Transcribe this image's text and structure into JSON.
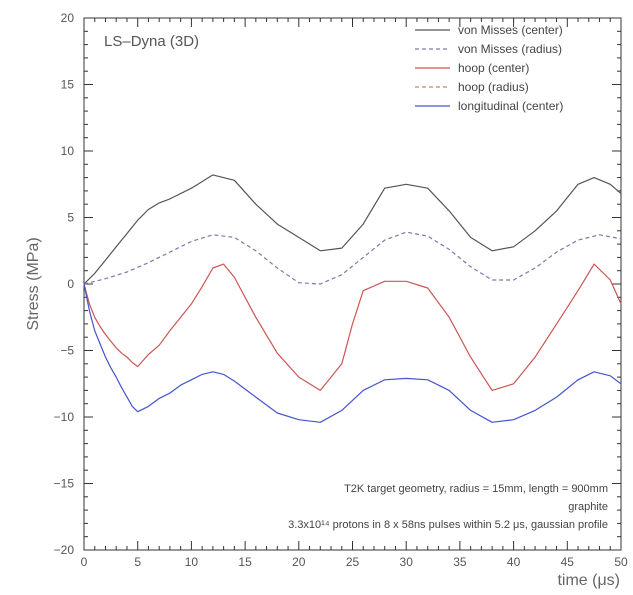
{
  "chart_data": {
    "type": "line",
    "title": "LS–Dyna (3D)",
    "xlabel": "time (μs)",
    "ylabel": "Stress (MPa)",
    "xlim": [
      0,
      50
    ],
    "ylim": [
      -20,
      20
    ],
    "xticks": [
      "0",
      "5",
      "10",
      "15",
      "20",
      "25",
      "30",
      "35",
      "40",
      "45",
      "50"
    ],
    "yticks": [
      "20",
      "15",
      "10",
      "5",
      "0",
      "−5",
      "−10",
      "−15",
      "−20"
    ],
    "grid": false,
    "legend_position": "top-right",
    "annotations": [
      "T2K target geometry, radius = 15mm, length = 900mm",
      "graphite",
      "3.3x10¹⁴ protons in 8 x 58ns pulses within 5.2 μs, gaussian profile"
    ],
    "series": [
      {
        "name": "von Misses (center)",
        "color": "#555555",
        "dash": "solid",
        "x": [
          0,
          1,
          2,
          3,
          4,
          5,
          6,
          7,
          8,
          10,
          12,
          14,
          16,
          18,
          20,
          22,
          24,
          26,
          28,
          30,
          32,
          34,
          36,
          38,
          40,
          42,
          44,
          46,
          47.5,
          49,
          50
        ],
        "y": [
          0,
          0.8,
          1.8,
          2.8,
          3.8,
          4.8,
          5.6,
          6.1,
          6.4,
          7.2,
          8.2,
          7.8,
          6.0,
          4.5,
          3.5,
          2.5,
          2.7,
          4.5,
          7.2,
          7.5,
          7.2,
          5.5,
          3.5,
          2.5,
          2.8,
          4.0,
          5.5,
          7.5,
          8.0,
          7.5,
          6.8
        ]
      },
      {
        "name": "von Misses (radius)",
        "color": "#7a7aa8",
        "dash": "dashed",
        "x": [
          0,
          2,
          4,
          6,
          8,
          10,
          12,
          14,
          16,
          18,
          20,
          22,
          24,
          26,
          28,
          30,
          32,
          34,
          36,
          38,
          40,
          42,
          44,
          46,
          48,
          50
        ],
        "y": [
          0,
          0.4,
          0.9,
          1.6,
          2.4,
          3.2,
          3.7,
          3.5,
          2.5,
          1.2,
          0.1,
          0.0,
          0.7,
          2.0,
          3.3,
          3.9,
          3.6,
          2.6,
          1.3,
          0.3,
          0.3,
          1.2,
          2.4,
          3.3,
          3.7,
          3.4
        ]
      },
      {
        "name": "hoop (center)",
        "color": "#cc5555",
        "dash": "solid",
        "x": [
          0,
          0.5,
          1,
          1.5,
          2,
          2.5,
          3,
          3.5,
          4,
          4.5,
          5,
          6,
          7,
          8,
          9,
          10,
          11,
          12,
          13,
          14,
          16,
          18,
          20,
          22,
          24,
          25,
          26,
          28,
          30,
          32,
          34,
          36,
          38,
          40,
          42,
          44,
          46,
          47.5,
          49,
          50
        ],
        "y": [
          0,
          -1.5,
          -2.5,
          -3.2,
          -3.8,
          -4.3,
          -4.8,
          -5.2,
          -5.5,
          -5.9,
          -6.2,
          -5.3,
          -4.6,
          -3.5,
          -2.5,
          -1.5,
          -0.2,
          1.2,
          1.5,
          0.5,
          -2.5,
          -5.2,
          -7.0,
          -8.0,
          -6.0,
          -3.0,
          -0.5,
          0.2,
          0.2,
          -0.3,
          -2.5,
          -5.5,
          -8.0,
          -7.5,
          -5.5,
          -3.0,
          -0.5,
          1.5,
          0.3,
          -1.5
        ]
      },
      {
        "name": "hoop (radius)",
        "color": "#dd7777",
        "dash": "dashed",
        "x": [],
        "y": []
      },
      {
        "name": "longitudinal (center)",
        "color": "#4455cc",
        "dash": "solid",
        "x": [
          0,
          0.5,
          1,
          1.5,
          2,
          2.5,
          3,
          3.5,
          4,
          4.5,
          5,
          6,
          7,
          8,
          9,
          10,
          11,
          12,
          13,
          14,
          16,
          18,
          20,
          22,
          24,
          26,
          28,
          30,
          32,
          34,
          36,
          38,
          40,
          42,
          44,
          46,
          47.5,
          49,
          50
        ],
        "y": [
          0,
          -2.0,
          -3.5,
          -4.5,
          -5.5,
          -6.3,
          -7.0,
          -7.8,
          -8.5,
          -9.2,
          -9.6,
          -9.2,
          -8.6,
          -8.2,
          -7.6,
          -7.2,
          -6.8,
          -6.6,
          -6.8,
          -7.3,
          -8.5,
          -9.7,
          -10.2,
          -10.4,
          -9.5,
          -8.0,
          -7.2,
          -7.1,
          -7.2,
          -8.0,
          -9.5,
          -10.4,
          -10.2,
          -9.5,
          -8.5,
          -7.2,
          -6.6,
          -6.9,
          -7.5
        ]
      }
    ]
  }
}
